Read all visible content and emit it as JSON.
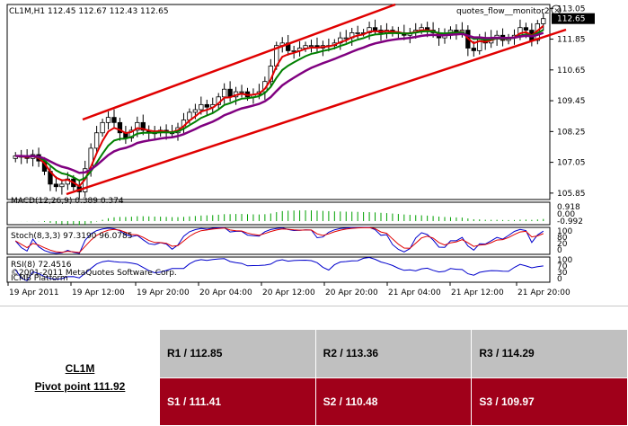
{
  "chart_data": {
    "type": "candlestick",
    "symbol_header": "CL1M,H1  112.45 112.67 112.43 112.65",
    "indicator_label": "quotes_flow__monitor2",
    "current_price": "112.65",
    "y_ticks": [
      "113.05",
      "111.85",
      "110.65",
      "109.45",
      "108.25",
      "107.05",
      "105.85"
    ],
    "x_ticks": [
      "19 Apr 2011",
      "19 Apr 12:00",
      "19 Apr 20:00",
      "20 Apr 04:00",
      "20 Apr 12:00",
      "20 Apr 20:00",
      "21 Apr 04:00",
      "21 Apr 12:00",
      "21 Apr 20:00"
    ],
    "ylim": [
      105.6,
      113.2
    ],
    "closes": [
      107.3,
      107.25,
      107.2,
      107.35,
      107.1,
      106.7,
      106.2,
      106.1,
      106.2,
      106.4,
      106.1,
      105.9,
      106.8,
      107.6,
      108.2,
      108.6,
      108.8,
      108.6,
      108.2,
      108.0,
      108.3,
      108.6,
      108.3,
      108.2,
      108.2,
      108.3,
      108.2,
      108.2,
      108.4,
      108.7,
      109.0,
      109.1,
      109.3,
      109.2,
      109.3,
      109.6,
      109.9,
      109.6,
      109.8,
      109.8,
      109.6,
      109.7,
      109.8,
      110.2,
      110.8,
      111.6,
      111.7,
      111.4,
      111.4,
      111.5,
      111.6,
      111.6,
      111.5,
      111.6,
      111.6,
      111.7,
      111.9,
      111.9,
      112.1,
      112.1,
      112.1,
      112.3,
      112.2,
      112.1,
      112.2,
      112.1,
      112.1,
      112.0,
      112.1,
      112.2,
      112.3,
      112.2,
      112.1,
      111.9,
      112.0,
      112.2,
      112.1,
      112.2,
      111.5,
      111.4,
      111.9,
      111.7,
      111.9,
      112.0,
      111.8,
      111.9,
      112.0,
      112.3,
      112.2,
      111.8,
      112.45,
      112.65
    ],
    "macd_label": "MACD(12,26,9) 0.389 0.374",
    "macd_ticks": [
      "0.918",
      "0.00",
      "-0.992"
    ],
    "stoch_label": "Stoch(8,3,3) 97.3190 96.0785",
    "stoch_ticks": [
      "100",
      "80",
      "20",
      "0"
    ],
    "rsi_label": "RSI(8) 72.4516",
    "rsi_ticks": [
      "100",
      "70",
      "30",
      "0"
    ],
    "watermark": "©2001-2011 MetaQuotes Software Corp.",
    "platform": "ICMB Platform",
    "colors": {
      "up": "#ffffff",
      "down": "#000000",
      "ma_fast": "#e00000",
      "ma_mid": "#008000",
      "ma_slow": "#800080",
      "channel": "#e00000",
      "macd": "#00a000",
      "stoch_main": "#0000cc",
      "stoch_signal": "#e00000",
      "rsi": "#0000cc"
    }
  },
  "pivot": {
    "symbol": "CL1M",
    "pivot_point": "Pivot point 111.92",
    "r1": "R1 / 112.85",
    "r2": "R2 / 113.36",
    "r3": "R3 / 114.29",
    "s1": "S1 / 111.41",
    "s2": "S2 /  110.48",
    "s3": "S3 /  109.97"
  }
}
